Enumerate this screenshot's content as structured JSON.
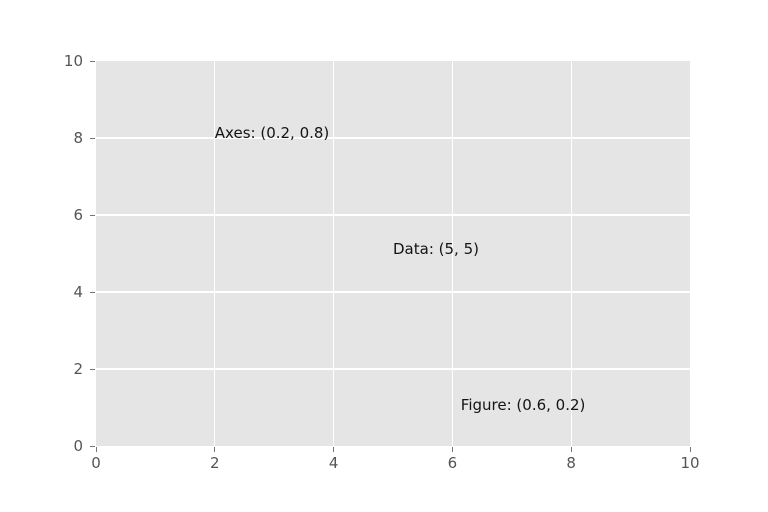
{
  "figure": {
    "background_color": "#ffffff"
  },
  "chart_data": {
    "type": "scatter",
    "title": "",
    "xlabel": "",
    "ylabel": "",
    "xlim": [
      0,
      10
    ],
    "ylim": [
      0,
      10
    ],
    "x_ticks": [
      0,
      2,
      4,
      6,
      8,
      10
    ],
    "y_ticks": [
      0,
      2,
      4,
      6,
      8,
      10
    ],
    "grid": true,
    "legend": false,
    "series": [],
    "annotations": [
      {
        "label": "Axes: (0.2, 0.8)",
        "coord_system": "axes",
        "x": 0.2,
        "y": 0.8
      },
      {
        "label": "Data: (5, 5)",
        "coord_system": "data",
        "x": 5,
        "y": 5
      },
      {
        "label": "Figure: (0.6, 0.2)",
        "coord_system": "figure",
        "x": 0.6,
        "y": 0.2
      }
    ],
    "style": {
      "axes_background": "#e5e5e5",
      "grid_color": "#ffffff",
      "tick_color": "#555555",
      "annotation_text_color": "#141414"
    }
  }
}
